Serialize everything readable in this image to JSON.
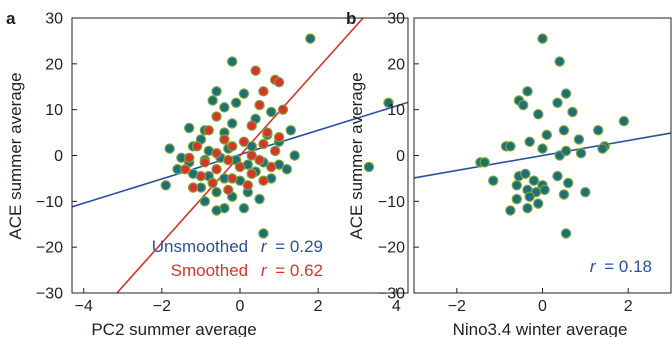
{
  "chart_data": [
    {
      "panel": "a",
      "type": "scatter",
      "xlabel": "PC2 summer average",
      "ylabel": "ACE summer average",
      "xlim": [
        -4.3,
        4.3
      ],
      "ylim": [
        -30,
        30
      ],
      "xticks": [
        -4,
        -2,
        0,
        2,
        4
      ],
      "yticks": [
        -30,
        -20,
        -10,
        0,
        10,
        20,
        30
      ],
      "xtick_labels": [
        "−4",
        "−2",
        "0",
        "2",
        "4"
      ],
      "ytick_labels": [
        "−30",
        "−20",
        "−10",
        "0",
        "10",
        "20",
        "30"
      ],
      "grid": false,
      "series": [
        {
          "name": "Unsmoothed",
          "color": "#1f6f7a",
          "edge": "#7aa63a",
          "points": [
            [
              1.8,
              25.5
            ],
            [
              -0.2,
              20.5
            ],
            [
              3.8,
              11.5
            ],
            [
              3.3,
              -2.5
            ],
            [
              0.6,
              -17.0
            ],
            [
              -0.6,
              14.0
            ],
            [
              -0.4,
              10.5
            ],
            [
              -0.7,
              12.0
            ],
            [
              0.1,
              13.5
            ],
            [
              -1.3,
              6.0
            ],
            [
              -0.9,
              5.5
            ],
            [
              -0.4,
              5.0
            ],
            [
              -1.0,
              3.5
            ],
            [
              -0.2,
              7.0
            ],
            [
              0.4,
              8.0
            ],
            [
              -1.2,
              2.0
            ],
            [
              -0.8,
              1.0
            ],
            [
              -0.3,
              1.5
            ],
            [
              0.3,
              2.0
            ],
            [
              -1.8,
              1.5
            ],
            [
              -1.5,
              -0.5
            ],
            [
              -1.9,
              -6.5
            ],
            [
              -1.3,
              -1.5
            ],
            [
              -0.9,
              -1.0
            ],
            [
              -0.5,
              -0.5
            ],
            [
              -0.1,
              -1.0
            ],
            [
              0.2,
              -2.0
            ],
            [
              0.6,
              -1.5
            ],
            [
              1.0,
              -2.0
            ],
            [
              1.4,
              0.0
            ],
            [
              -1.6,
              -3.0
            ],
            [
              -1.2,
              -4.0
            ],
            [
              -0.8,
              -4.5
            ],
            [
              -0.4,
              -5.0
            ],
            [
              0.0,
              -5.5
            ],
            [
              0.4,
              -3.5
            ],
            [
              0.8,
              -5.0
            ],
            [
              1.2,
              -3.0
            ],
            [
              -1.0,
              -7.0
            ],
            [
              -0.6,
              -8.0
            ],
            [
              -0.2,
              -9.0
            ],
            [
              0.2,
              -8.0
            ],
            [
              0.5,
              -9.5
            ],
            [
              -0.9,
              -10.0
            ],
            [
              -0.4,
              -11.5
            ],
            [
              0.1,
              -11.5
            ],
            [
              -0.6,
              -12.0
            ],
            [
              1.0,
              3.0
            ],
            [
              0.7,
              4.5
            ],
            [
              1.3,
              5.5
            ],
            [
              -0.1,
              11.5
            ],
            [
              0.8,
              9.5
            ]
          ]
        },
        {
          "name": "Smoothed",
          "color": "#d9342b",
          "edge": "#7aa63a",
          "points": [
            [
              0.4,
              18.5
            ],
            [
              0.9,
              16.5
            ],
            [
              1.0,
              16.0
            ],
            [
              0.6,
              14.0
            ],
            [
              0.5,
              11.0
            ],
            [
              1.1,
              10.0
            ],
            [
              -0.6,
              8.5
            ],
            [
              0.3,
              6.5
            ],
            [
              0.7,
              5.0
            ],
            [
              -0.8,
              5.5
            ],
            [
              1.0,
              4.0
            ],
            [
              -0.4,
              3.5
            ],
            [
              0.1,
              3.0
            ],
            [
              0.6,
              2.5
            ],
            [
              -1.1,
              2.0
            ],
            [
              -0.2,
              2.0
            ],
            [
              0.9,
              1.0
            ],
            [
              -0.6,
              0.5
            ],
            [
              0.3,
              0.0
            ],
            [
              -1.3,
              -0.5
            ],
            [
              -0.3,
              -1.0
            ],
            [
              0.5,
              -1.0
            ],
            [
              -0.9,
              -1.5
            ],
            [
              0.0,
              -2.5
            ],
            [
              0.8,
              -2.5
            ],
            [
              -1.4,
              -3.0
            ],
            [
              -0.6,
              -3.0
            ],
            [
              0.3,
              -4.0
            ],
            [
              -1.0,
              -4.5
            ],
            [
              -0.2,
              -5.0
            ],
            [
              0.6,
              -5.5
            ],
            [
              -0.7,
              -6.0
            ],
            [
              -1.2,
              -7.0
            ],
            [
              -0.3,
              -7.5
            ],
            [
              0.2,
              -6.5
            ]
          ]
        }
      ],
      "fit_lines": [
        {
          "name": "Unsmoothed",
          "color": "#2b50a0",
          "x": [
            -4.3,
            4.3
          ],
          "y": [
            -11.2,
            11.6
          ]
        },
        {
          "name": "Smoothed",
          "color": "#d9342b",
          "x": [
            -3.15,
            3.15
          ],
          "y": [
            -30.0,
            30.0
          ]
        }
      ],
      "annotations": [
        {
          "name": "Unsmoothed",
          "r_label": "r",
          "r_value": "= 0.29",
          "color": "#2b50a0"
        },
        {
          "name": "Smoothed",
          "r_label": "r",
          "r_value": "= 0.62",
          "color": "#d9342b"
        }
      ]
    },
    {
      "panel": "b",
      "type": "scatter",
      "xlabel": "Nino3.4 winter average",
      "ylabel": "ACE summer average",
      "xlim": [
        -3.0,
        3.0
      ],
      "ylim": [
        -30,
        30
      ],
      "xticks": [
        -2,
        0,
        2
      ],
      "yticks": [
        -30,
        -20,
        -10,
        0,
        10,
        20,
        30
      ],
      "xtick_labels": [
        "−2",
        "0",
        "2"
      ],
      "ytick_labels": [
        "−30",
        "−20",
        "−10",
        "0",
        "10",
        "20",
        "30"
      ],
      "grid": false,
      "series": [
        {
          "name": "",
          "color": "#1f6f7a",
          "edge": "#7aa63a",
          "points": [
            [
              0.0,
              25.5
            ],
            [
              0.4,
              20.5
            ],
            [
              -0.55,
              12.0
            ],
            [
              -0.45,
              11.0
            ],
            [
              -0.35,
              14.0
            ],
            [
              0.55,
              13.5
            ],
            [
              0.35,
              11.5
            ],
            [
              1.9,
              7.5
            ],
            [
              -0.1,
              9.0
            ],
            [
              0.7,
              9.5
            ],
            [
              0.5,
              5.5
            ],
            [
              1.3,
              5.5
            ],
            [
              -0.85,
              2.0
            ],
            [
              -0.75,
              2.0
            ],
            [
              -0.3,
              3.0
            ],
            [
              0.1,
              4.5
            ],
            [
              0.85,
              3.5
            ],
            [
              1.45,
              2.0
            ],
            [
              1.4,
              1.5
            ],
            [
              -1.45,
              -1.5
            ],
            [
              -1.35,
              -1.5
            ],
            [
              0.0,
              1.5
            ],
            [
              0.4,
              0.0
            ],
            [
              0.55,
              1.0
            ],
            [
              -1.15,
              -5.5
            ],
            [
              -0.55,
              -4.5
            ],
            [
              -0.4,
              -4.0
            ],
            [
              -0.2,
              -5.5
            ],
            [
              0.0,
              -6.5
            ],
            [
              0.35,
              -4.5
            ],
            [
              0.6,
              -6.0
            ],
            [
              -0.6,
              -6.5
            ],
            [
              -0.35,
              -7.5
            ],
            [
              -0.15,
              -8.0
            ],
            [
              0.05,
              -7.5
            ],
            [
              0.5,
              -8.5
            ],
            [
              -0.6,
              -9.5
            ],
            [
              -0.3,
              -9.0
            ],
            [
              -0.1,
              -10.5
            ],
            [
              -0.35,
              -11.5
            ],
            [
              -0.75,
              -12.0
            ],
            [
              0.55,
              -17.0
            ],
            [
              1.0,
              -8.0
            ],
            [
              0.9,
              0.5
            ]
          ]
        }
      ],
      "fit_lines": [
        {
          "name": "",
          "color": "#2b50a0",
          "x": [
            -3.0,
            3.0
          ],
          "y": [
            -4.9,
            4.9
          ]
        }
      ],
      "annotations": [
        {
          "name": "",
          "r_label": "r",
          "r_value": "= 0.18",
          "color": "#2b50a0"
        }
      ]
    }
  ]
}
